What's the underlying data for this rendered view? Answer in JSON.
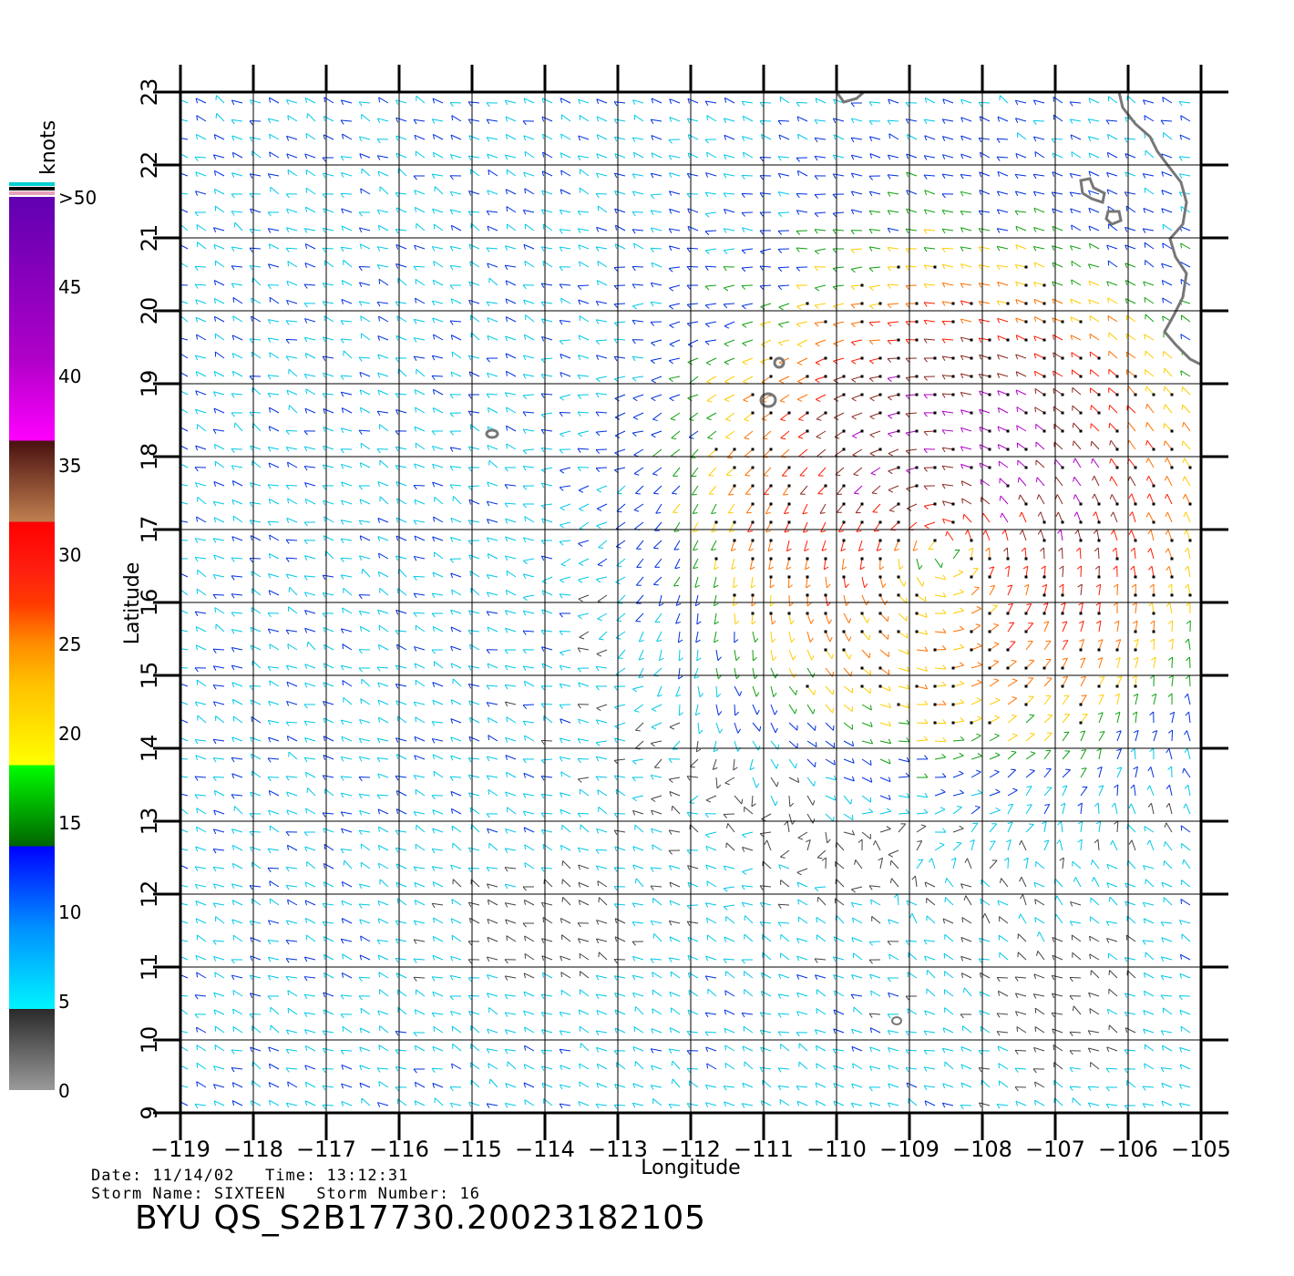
{
  "product": {
    "title": "BYU QS_S2B17730.20023182105",
    "date_label": "Date:",
    "date": "11/14/02",
    "time_label": "Time:",
    "time": "13:12:31",
    "storm_name_label": "Storm Name:",
    "storm_name": "SIXTEEN",
    "storm_number_label": "Storm Number:",
    "storm_number": "16"
  },
  "colorbar": {
    "unit": "knots",
    "labels": [
      "0",
      "5",
      "10",
      "15",
      "20",
      "25",
      "30",
      "35",
      "40",
      "45",
      ">50"
    ],
    "top_stripes": [
      "#00cfcf",
      "#000000",
      "#e8a0b8"
    ]
  },
  "map": {
    "x_axis_label": "Longitude",
    "y_axis_label": "Latitude",
    "lon_ticks": [
      "−119",
      "−118",
      "−117",
      "−116",
      "−115",
      "−114",
      "−113",
      "−112",
      "−111",
      "−110",
      "−109",
      "−108",
      "−107",
      "−106",
      "−105"
    ],
    "lat_ticks": [
      "9",
      "10",
      "11",
      "12",
      "13",
      "14",
      "15",
      "16",
      "17",
      "18",
      "19",
      "20",
      "21",
      "22",
      "23"
    ],
    "lon_range": [
      -119,
      -105
    ],
    "lat_range": [
      9,
      23
    ],
    "coast_color": "#777777",
    "grid_color": "#000000",
    "storm_center": [
      -108.5,
      16.8
    ]
  }
}
